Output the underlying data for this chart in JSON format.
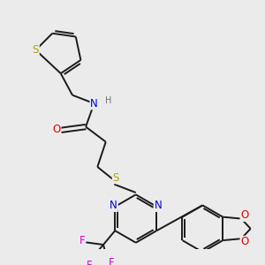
{
  "background_color": "#ebebeb",
  "bond_color": "#1a1a1a",
  "atom_colors": {
    "S": "#b8a000",
    "N": "#0000dd",
    "O": "#dd0000",
    "F": "#dd00dd",
    "H": "#707070",
    "C": "#1a1a1a"
  },
  "font_size": 8.5,
  "line_width": 1.4
}
